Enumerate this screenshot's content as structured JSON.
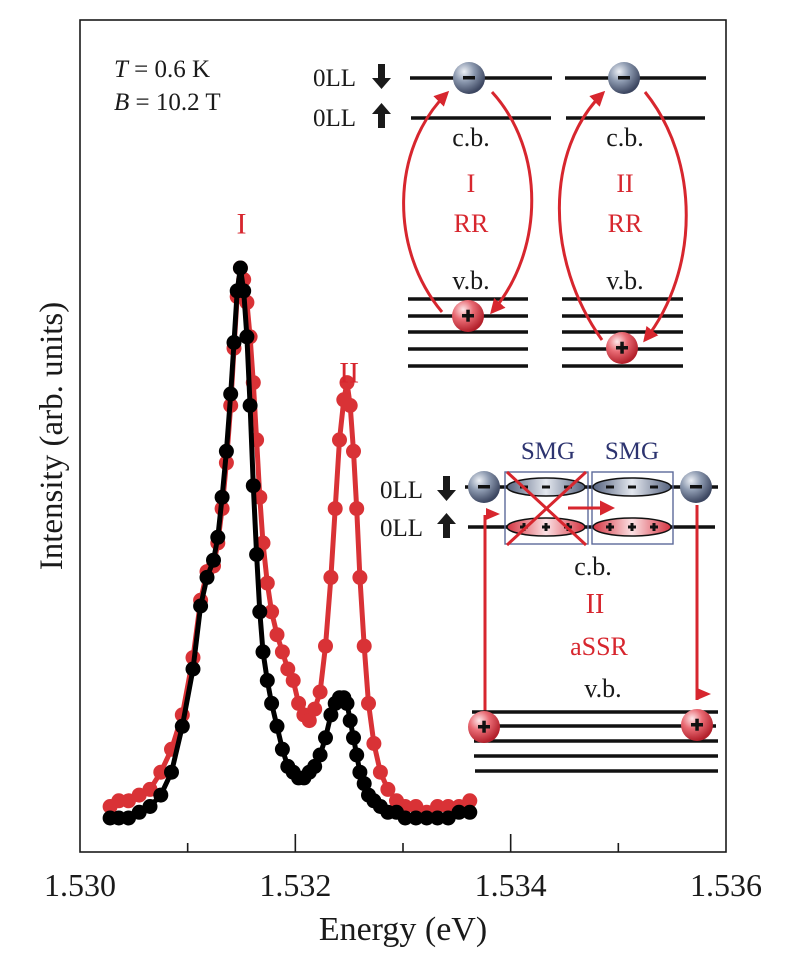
{
  "chart_data": {
    "type": "scatter",
    "title": "",
    "xlabel": "Energy (eV)",
    "ylabel": "Intensity (arb. units)",
    "xlim": [
      1.53,
      1.536
    ],
    "ylim": [
      0,
      1.07
    ],
    "x_ticks_major": [
      "1.530",
      "1.532",
      "1.534",
      "1.536"
    ],
    "x_ticks_major_values": [
      1.53,
      1.532,
      1.534,
      1.536
    ],
    "x_ticks_minor_values": [
      1.531,
      1.533,
      1.535
    ],
    "y_ticks": [],
    "grid": false,
    "legend": null,
    "annotations": {
      "conditions": [
        {
          "var": "T",
          "text": " = 0.6 K"
        },
        {
          "var": "B",
          "text": " = 10.2 T"
        }
      ],
      "peak_labels": [
        {
          "text": "I",
          "x": 1.5315,
          "y": 1.06
        },
        {
          "text": "II",
          "x": 1.5325,
          "y": 0.8
        }
      ]
    },
    "series": [
      {
        "name": "red-spectrum",
        "color": "#d93236",
        "x": [
          1.53028,
          1.53036,
          1.53045,
          1.53055,
          1.53065,
          1.53075,
          1.53085,
          1.53095,
          1.53105,
          1.53112,
          1.53118,
          1.53124,
          1.53128,
          1.53132,
          1.53136,
          1.5314,
          1.53143,
          1.53146,
          1.53149,
          1.53152,
          1.53155,
          1.53158,
          1.53161,
          1.53164,
          1.53167,
          1.5317,
          1.53174,
          1.53178,
          1.53183,
          1.53188,
          1.53193,
          1.53198,
          1.53203,
          1.53208,
          1.53213,
          1.53218,
          1.53223,
          1.53228,
          1.53233,
          1.53237,
          1.53241,
          1.53245,
          1.53248,
          1.53251,
          1.53254,
          1.53257,
          1.5326,
          1.53264,
          1.53268,
          1.53273,
          1.53279,
          1.53286,
          1.53294,
          1.53302,
          1.53312,
          1.53322,
          1.53332,
          1.53342,
          1.53352,
          1.53362
        ],
        "y": [
          0.06,
          0.07,
          0.07,
          0.08,
          0.09,
          0.12,
          0.16,
          0.22,
          0.32,
          0.42,
          0.47,
          0.48,
          0.52,
          0.58,
          0.66,
          0.76,
          0.86,
          0.95,
          1.0,
          0.98,
          0.94,
          0.88,
          0.8,
          0.7,
          0.6,
          0.52,
          0.45,
          0.4,
          0.36,
          0.33,
          0.3,
          0.28,
          0.24,
          0.22,
          0.21,
          0.23,
          0.26,
          0.34,
          0.46,
          0.58,
          0.7,
          0.77,
          0.8,
          0.76,
          0.68,
          0.58,
          0.46,
          0.34,
          0.24,
          0.17,
          0.12,
          0.09,
          0.07,
          0.06,
          0.06,
          0.05,
          0.06,
          0.06,
          0.06,
          0.07
        ]
      },
      {
        "name": "black-spectrum",
        "color": "#000000",
        "x": [
          1.53028,
          1.53036,
          1.53045,
          1.53055,
          1.53065,
          1.53075,
          1.53085,
          1.53095,
          1.53105,
          1.53112,
          1.53118,
          1.53124,
          1.53128,
          1.53132,
          1.53136,
          1.5314,
          1.53143,
          1.53146,
          1.53149,
          1.53152,
          1.53155,
          1.53158,
          1.53161,
          1.53164,
          1.53167,
          1.5317,
          1.53174,
          1.53178,
          1.53183,
          1.53188,
          1.53193,
          1.53198,
          1.53203,
          1.53208,
          1.53213,
          1.53218,
          1.53223,
          1.53228,
          1.53233,
          1.53237,
          1.53241,
          1.53245,
          1.53248,
          1.53251,
          1.53254,
          1.53257,
          1.5326,
          1.53264,
          1.53268,
          1.53273,
          1.53279,
          1.53286,
          1.53294,
          1.53302,
          1.53312,
          1.53322,
          1.53332,
          1.53342,
          1.53352,
          1.53362
        ],
        "y": [
          0.04,
          0.04,
          0.04,
          0.05,
          0.06,
          0.08,
          0.12,
          0.2,
          0.3,
          0.41,
          0.46,
          0.49,
          0.53,
          0.6,
          0.68,
          0.78,
          0.87,
          0.96,
          1.0,
          0.96,
          0.88,
          0.76,
          0.62,
          0.5,
          0.4,
          0.33,
          0.28,
          0.24,
          0.2,
          0.16,
          0.13,
          0.12,
          0.11,
          0.11,
          0.12,
          0.13,
          0.15,
          0.18,
          0.22,
          0.24,
          0.25,
          0.25,
          0.24,
          0.21,
          0.18,
          0.15,
          0.12,
          0.1,
          0.08,
          0.07,
          0.06,
          0.05,
          0.05,
          0.04,
          0.04,
          0.04,
          0.04,
          0.04,
          0.05,
          0.05
        ]
      }
    ]
  },
  "insets": {
    "rr_panel": {
      "level_labels": [
        "0LL",
        "0LL"
      ],
      "spin_arrows": [
        "down",
        "up"
      ],
      "columns": [
        {
          "process_number": "I",
          "process_name": "RR",
          "cb_label": "c.b.",
          "vb_label": "v.b."
        },
        {
          "process_number": "II",
          "process_name": "RR",
          "cb_label": "c.b.",
          "vb_label": "v.b."
        }
      ],
      "electron_sign": "−",
      "hole_sign": "+"
    },
    "assr_panel": {
      "level_labels": [
        "0LL",
        "0LL"
      ],
      "spin_arrows": [
        "down",
        "up"
      ],
      "smg_labels": [
        "SMG",
        "SMG"
      ],
      "cb_label": "c.b.",
      "process_number": "II",
      "process_name": "aSSR",
      "vb_label": "v.b.",
      "electron_sign": "−",
      "hole_sign": "+"
    }
  },
  "colors": {
    "accent_red": "#d7262e",
    "navy_text": "#2d3470",
    "axis": "#1a1a1a"
  }
}
